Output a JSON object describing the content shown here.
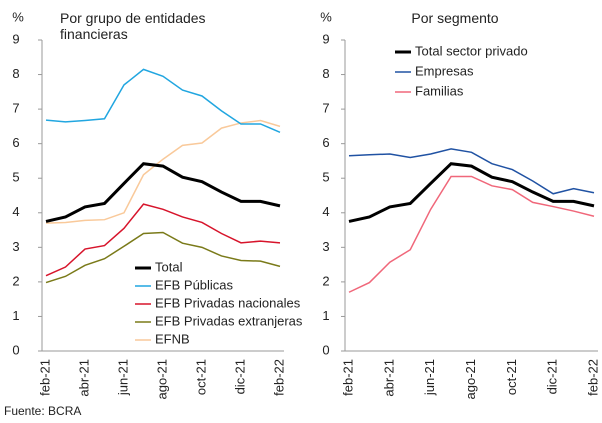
{
  "chart_data": [
    {
      "type": "line",
      "title": "Por grupo de entidades financieras",
      "ylabel": "%",
      "categories": [
        "feb-21",
        null,
        "abr-21",
        null,
        "jun-21",
        null,
        "ago-21",
        null,
        "oct-21",
        null,
        "dic-21",
        null,
        "feb-22"
      ],
      "ylim": [
        0,
        9
      ],
      "yticks": [
        0,
        1,
        2,
        3,
        4,
        5,
        6,
        7,
        8,
        9
      ],
      "legend": "lower right",
      "series": [
        {
          "name": "Total",
          "color": "#000000",
          "values": [
            3.75,
            3.88,
            4.17,
            4.27,
            4.85,
            5.42,
            5.35,
            5.03,
            4.9,
            4.6,
            4.33,
            4.33,
            4.2
          ]
        },
        {
          "name": "EFB Públicas",
          "color": "#21a6e0",
          "values": [
            6.68,
            6.63,
            6.67,
            6.72,
            7.7,
            8.15,
            7.95,
            7.55,
            7.38,
            6.95,
            6.57,
            6.57,
            6.33
          ]
        },
        {
          "name": "EFB Privadas nacionales",
          "color": "#d7142b",
          "values": [
            2.18,
            2.43,
            2.95,
            3.05,
            3.55,
            4.25,
            4.1,
            3.88,
            3.72,
            3.4,
            3.13,
            3.18,
            3.13
          ]
        },
        {
          "name": "EFB Privadas extranjeras",
          "color": "#7a7a19",
          "values": [
            1.98,
            2.16,
            2.48,
            2.67,
            3.03,
            3.4,
            3.43,
            3.12,
            3.0,
            2.75,
            2.62,
            2.6,
            2.45
          ]
        },
        {
          "name": "EFNB",
          "color": "#f9c99a",
          "values": [
            3.7,
            3.72,
            3.78,
            3.8,
            4.0,
            5.1,
            5.55,
            5.95,
            6.02,
            6.45,
            6.6,
            6.67,
            6.5
          ]
        }
      ]
    },
    {
      "type": "line",
      "title": "Por segmento",
      "ylabel": "%",
      "categories": [
        "feb-21",
        null,
        "abr-21",
        null,
        "jun-21",
        null,
        "ago-21",
        null,
        "oct-21",
        null,
        "dic-21",
        null,
        "feb-22"
      ],
      "ylim": [
        0,
        9
      ],
      "yticks": [
        0,
        1,
        2,
        3,
        4,
        5,
        6,
        7,
        8,
        9
      ],
      "legend": "upper left",
      "series": [
        {
          "name": "Total sector privado",
          "color": "#000000",
          "values": [
            3.75,
            3.88,
            4.17,
            4.27,
            4.85,
            5.42,
            5.35,
            5.03,
            4.9,
            4.6,
            4.33,
            4.33,
            4.2
          ]
        },
        {
          "name": "Empresas",
          "color": "#2052a3",
          "values": [
            5.65,
            5.68,
            5.7,
            5.6,
            5.7,
            5.85,
            5.75,
            5.42,
            5.25,
            4.92,
            4.55,
            4.7,
            4.58
          ]
        },
        {
          "name": "Familias",
          "color": "#f0677a",
          "values": [
            1.7,
            1.98,
            2.57,
            2.93,
            4.1,
            5.05,
            5.05,
            4.78,
            4.67,
            4.3,
            4.18,
            4.05,
            3.9
          ]
        }
      ]
    }
  ],
  "source": "Fuente: BCRA"
}
